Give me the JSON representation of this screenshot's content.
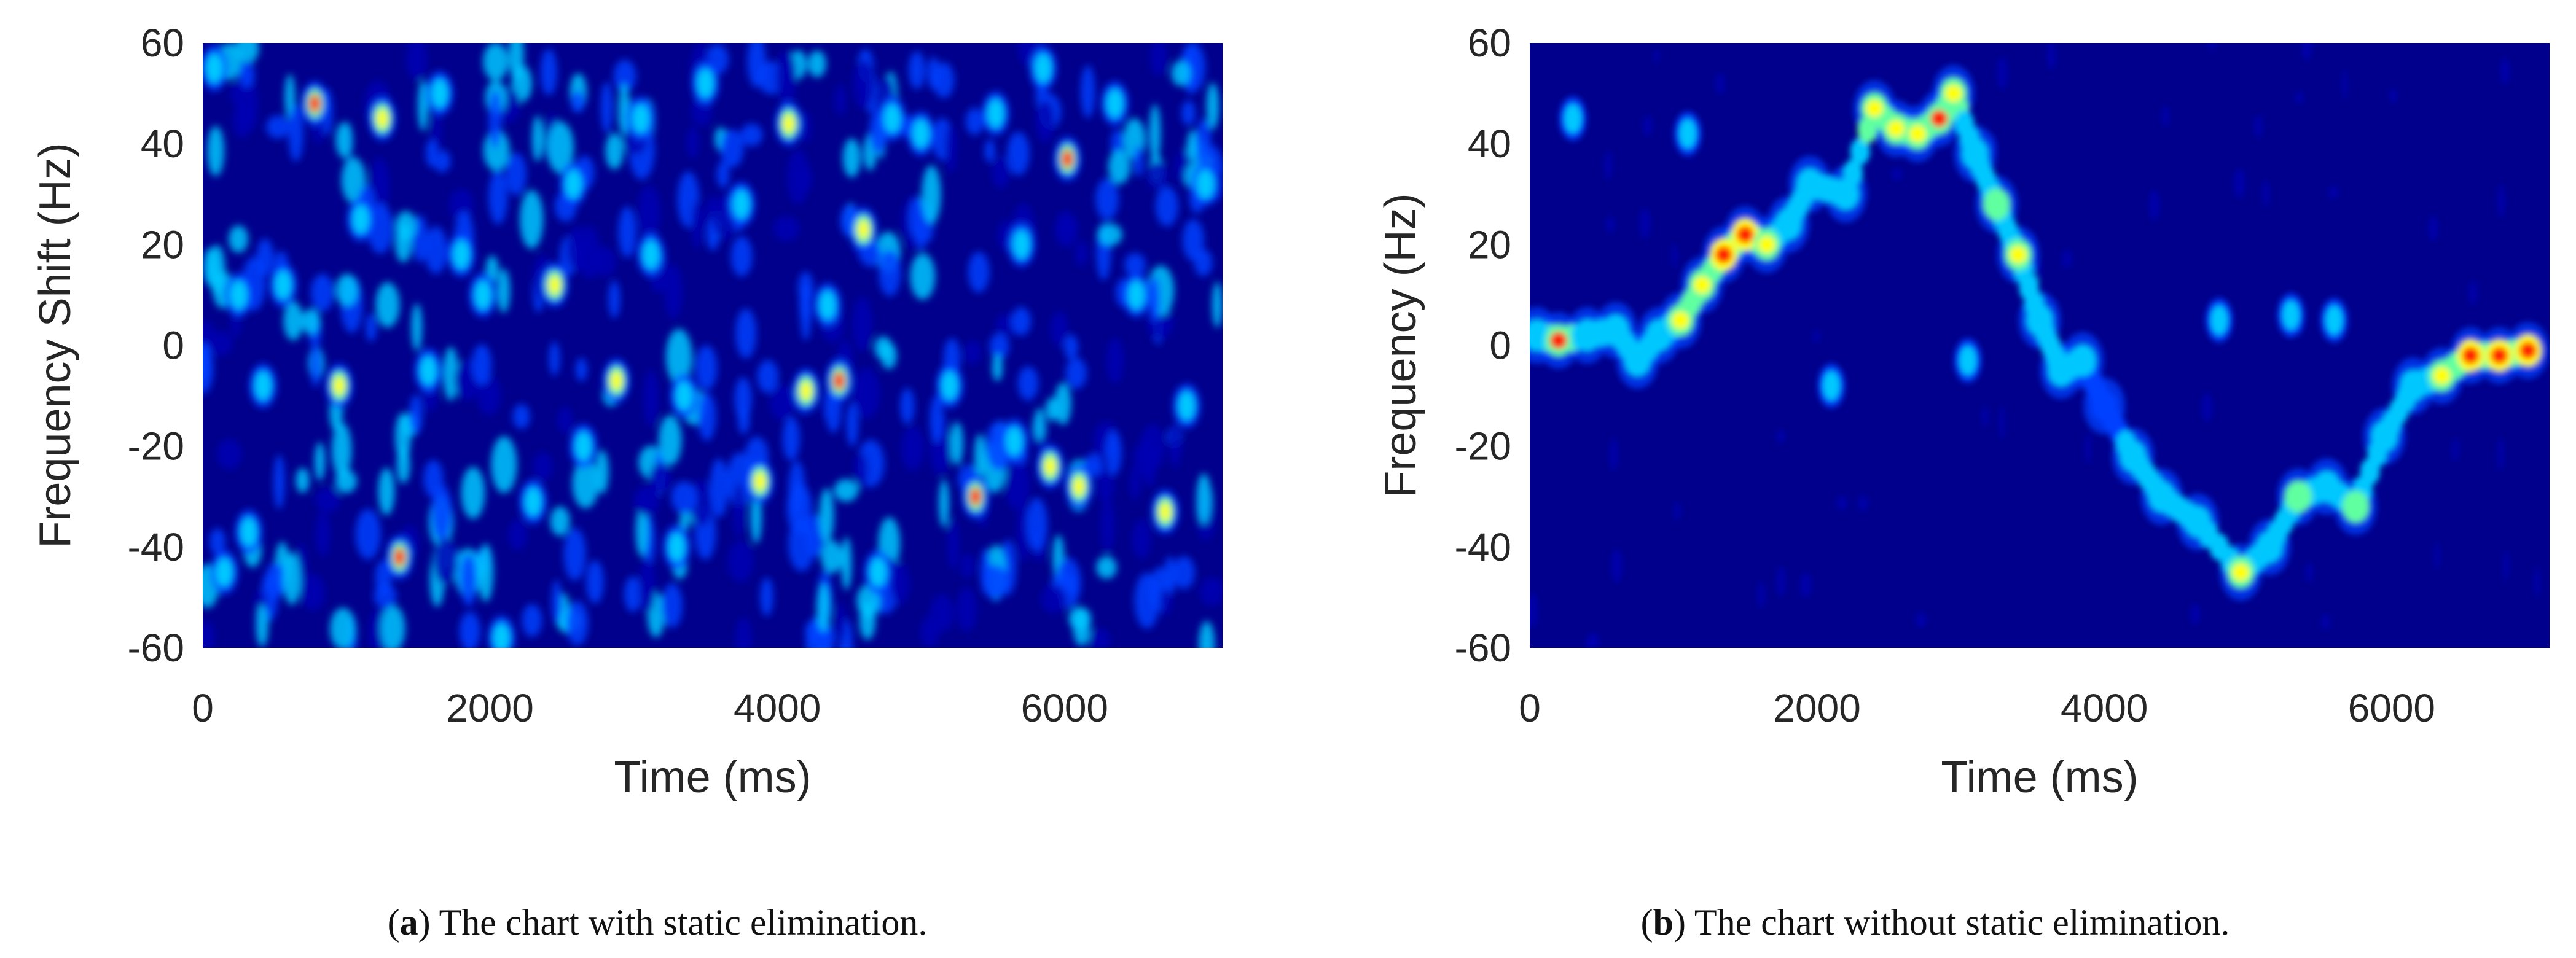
{
  "figure": {
    "panel_a": {
      "caption_letter": "a",
      "caption_text": "The chart with static elimination.",
      "caption_open": "(",
      "caption_close": ") "
    },
    "panel_b": {
      "caption_letter": "b",
      "caption_text": "The chart without static elimination.",
      "caption_open": "(",
      "caption_close": ") "
    }
  },
  "colors": {
    "background": "#00008c",
    "low": "#0000b4",
    "mid_low": "#0040ff",
    "mid": "#00c8ff",
    "mid_high": "#60ffa0",
    "high": "#ffff00",
    "peak": "#ff2000",
    "axis": "#262626"
  },
  "chart_data": [
    {
      "id": "a",
      "type": "heatmap",
      "title": "",
      "xlabel": "Time (ms)",
      "ylabel": "Frequency Shift (Hz)",
      "xlim": [
        0,
        7100
      ],
      "ylim": [
        -60,
        60
      ],
      "xticks": [
        0,
        2000,
        4000,
        6000
      ],
      "yticks": [
        60,
        40,
        20,
        0,
        -20,
        -40,
        -60
      ],
      "colormap": "jet",
      "description_of_values": "intensity 0-1, scattered noise blobs across full range",
      "ridge": [],
      "blobs": [
        {
          "t": 780,
          "f": 48,
          "v": 0.95
        },
        {
          "t": 1250,
          "f": 45,
          "v": 0.85
        },
        {
          "t": 1370,
          "f": -42,
          "v": 1.0
        },
        {
          "t": 950,
          "f": -8,
          "v": 0.85
        },
        {
          "t": 1570,
          "f": -5,
          "v": 0.7
        },
        {
          "t": 1800,
          "f": 18,
          "v": 0.8
        },
        {
          "t": 1950,
          "f": 10,
          "v": 0.8
        },
        {
          "t": 2080,
          "f": -58,
          "v": 0.8
        },
        {
          "t": 2450,
          "f": 12,
          "v": 0.85
        },
        {
          "t": 2580,
          "f": 32,
          "v": 0.8
        },
        {
          "t": 2880,
          "f": -7,
          "v": 0.85
        },
        {
          "t": 3050,
          "f": 45,
          "v": 0.8
        },
        {
          "t": 3120,
          "f": 18,
          "v": 0.75
        },
        {
          "t": 3880,
          "f": -27,
          "v": 0.85
        },
        {
          "t": 3750,
          "f": 28,
          "v": 0.8
        },
        {
          "t": 4080,
          "f": 44,
          "v": 0.9
        },
        {
          "t": 4200,
          "f": -9,
          "v": 0.9
        },
        {
          "t": 4430,
          "f": -7,
          "v": 0.95
        },
        {
          "t": 4600,
          "f": 23,
          "v": 0.85
        },
        {
          "t": 4800,
          "f": 45,
          "v": 0.7
        },
        {
          "t": 5000,
          "f": 42,
          "v": 0.8
        },
        {
          "t": 5200,
          "f": -8,
          "v": 0.8
        },
        {
          "t": 5380,
          "f": -30,
          "v": 1.0
        },
        {
          "t": 5520,
          "f": 46,
          "v": 0.8
        },
        {
          "t": 5650,
          "f": -19,
          "v": 0.8
        },
        {
          "t": 5900,
          "f": -24,
          "v": 0.9
        },
        {
          "t": 6020,
          "f": 37,
          "v": 0.98
        },
        {
          "t": 6100,
          "f": -28,
          "v": 0.9
        },
        {
          "t": 6350,
          "f": 48,
          "v": 0.6
        },
        {
          "t": 6700,
          "f": -33,
          "v": 0.9
        },
        {
          "t": 6850,
          "f": -12,
          "v": 0.7
        },
        {
          "t": 6980,
          "f": 32,
          "v": 0.75
        },
        {
          "t": 250,
          "f": 10,
          "v": 0.6
        },
        {
          "t": 420,
          "f": -8,
          "v": 0.75
        },
        {
          "t": 320,
          "f": -37,
          "v": 0.7
        },
        {
          "t": 150,
          "f": -45,
          "v": 0.65
        },
        {
          "t": 80,
          "f": 55,
          "v": 0.6
        },
        {
          "t": 560,
          "f": 12,
          "v": 0.75
        },
        {
          "t": 2300,
          "f": -31,
          "v": 0.75
        },
        {
          "t": 2650,
          "f": -20,
          "v": 0.55
        },
        {
          "t": 3350,
          "f": -10,
          "v": 0.6
        },
        {
          "t": 3500,
          "f": 52,
          "v": 0.6
        },
        {
          "t": 4700,
          "f": -45,
          "v": 0.6
        },
        {
          "t": 5850,
          "f": 55,
          "v": 0.65
        },
        {
          "t": 6500,
          "f": 10,
          "v": 0.55
        },
        {
          "t": 1100,
          "f": 25,
          "v": 0.55
        },
        {
          "t": 1650,
          "f": 50,
          "v": 0.55
        },
        {
          "t": 3300,
          "f": -40,
          "v": 0.55
        },
        {
          "t": 4350,
          "f": 8,
          "v": 0.5
        },
        {
          "t": 5700,
          "f": 20,
          "v": 0.5
        }
      ]
    },
    {
      "id": "b",
      "type": "heatmap",
      "title": "",
      "xlabel": "Time (ms)",
      "ylabel": "Frequency (Hz)",
      "xlim": [
        0,
        7100
      ],
      "ylim": [
        -60,
        60
      ],
      "xticks": [
        0,
        2000,
        4000,
        6000
      ],
      "yticks": [
        60,
        40,
        20,
        0,
        -20,
        -40,
        -60
      ],
      "colormap": "jet",
      "description_of_values": "intensity 0-1, a single Doppler trace on dark background",
      "ridge": [
        {
          "t": 50,
          "f": 2,
          "v": 0.75
        },
        {
          "t": 200,
          "f": 1,
          "v": 0.95
        },
        {
          "t": 400,
          "f": 2,
          "v": 0.75
        },
        {
          "t": 600,
          "f": 3,
          "v": 0.7
        },
        {
          "t": 750,
          "f": -3,
          "v": 0.75
        },
        {
          "t": 900,
          "f": 2,
          "v": 0.75
        },
        {
          "t": 1050,
          "f": 5,
          "v": 0.85
        },
        {
          "t": 1200,
          "f": 12,
          "v": 0.9
        },
        {
          "t": 1350,
          "f": 18,
          "v": 1.0
        },
        {
          "t": 1500,
          "f": 22,
          "v": 1.0
        },
        {
          "t": 1650,
          "f": 20,
          "v": 0.9
        },
        {
          "t": 1800,
          "f": 24,
          "v": 0.7
        },
        {
          "t": 1950,
          "f": 32,
          "v": 0.75
        },
        {
          "t": 2200,
          "f": 30,
          "v": 0.7
        },
        {
          "t": 2400,
          "f": 47,
          "v": 0.9
        },
        {
          "t": 2550,
          "f": 43,
          "v": 0.85
        },
        {
          "t": 2700,
          "f": 42,
          "v": 0.9
        },
        {
          "t": 2850,
          "f": 45,
          "v": 0.95
        },
        {
          "t": 2950,
          "f": 50,
          "v": 0.9
        },
        {
          "t": 3100,
          "f": 38,
          "v": 0.7
        },
        {
          "t": 3250,
          "f": 28,
          "v": 0.8
        },
        {
          "t": 3400,
          "f": 18,
          "v": 0.85
        },
        {
          "t": 3550,
          "f": 5,
          "v": 0.75
        },
        {
          "t": 3700,
          "f": -5,
          "v": 0.75
        },
        {
          "t": 3850,
          "f": -3,
          "v": 0.65
        },
        {
          "t": 4000,
          "f": -12,
          "v": 0.6
        },
        {
          "t": 4200,
          "f": -22,
          "v": 0.7
        },
        {
          "t": 4400,
          "f": -30,
          "v": 0.7
        },
        {
          "t": 4650,
          "f": -35,
          "v": 0.7
        },
        {
          "t": 4950,
          "f": -45,
          "v": 0.85
        },
        {
          "t": 5150,
          "f": -40,
          "v": 0.65
        },
        {
          "t": 5350,
          "f": -30,
          "v": 0.8
        },
        {
          "t": 5550,
          "f": -28,
          "v": 0.7
        },
        {
          "t": 5750,
          "f": -32,
          "v": 0.8
        },
        {
          "t": 5950,
          "f": -18,
          "v": 0.7
        },
        {
          "t": 6150,
          "f": -8,
          "v": 0.65
        },
        {
          "t": 6350,
          "f": -6,
          "v": 0.9
        },
        {
          "t": 6550,
          "f": -2,
          "v": 1.0
        },
        {
          "t": 6750,
          "f": -2,
          "v": 1.0
        },
        {
          "t": 6950,
          "f": -1,
          "v": 1.0
        }
      ],
      "blobs": [
        {
          "t": 3050,
          "f": -3,
          "v": 0.7
        },
        {
          "t": 4800,
          "f": 5,
          "v": 0.35
        },
        {
          "t": 5300,
          "f": 6,
          "v": 0.35
        },
        {
          "t": 5600,
          "f": 5,
          "v": 0.3
        },
        {
          "t": 2100,
          "f": -8,
          "v": 0.3
        },
        {
          "t": 300,
          "f": 45,
          "v": 0.25
        },
        {
          "t": 1100,
          "f": 42,
          "v": 0.25
        }
      ]
    }
  ]
}
